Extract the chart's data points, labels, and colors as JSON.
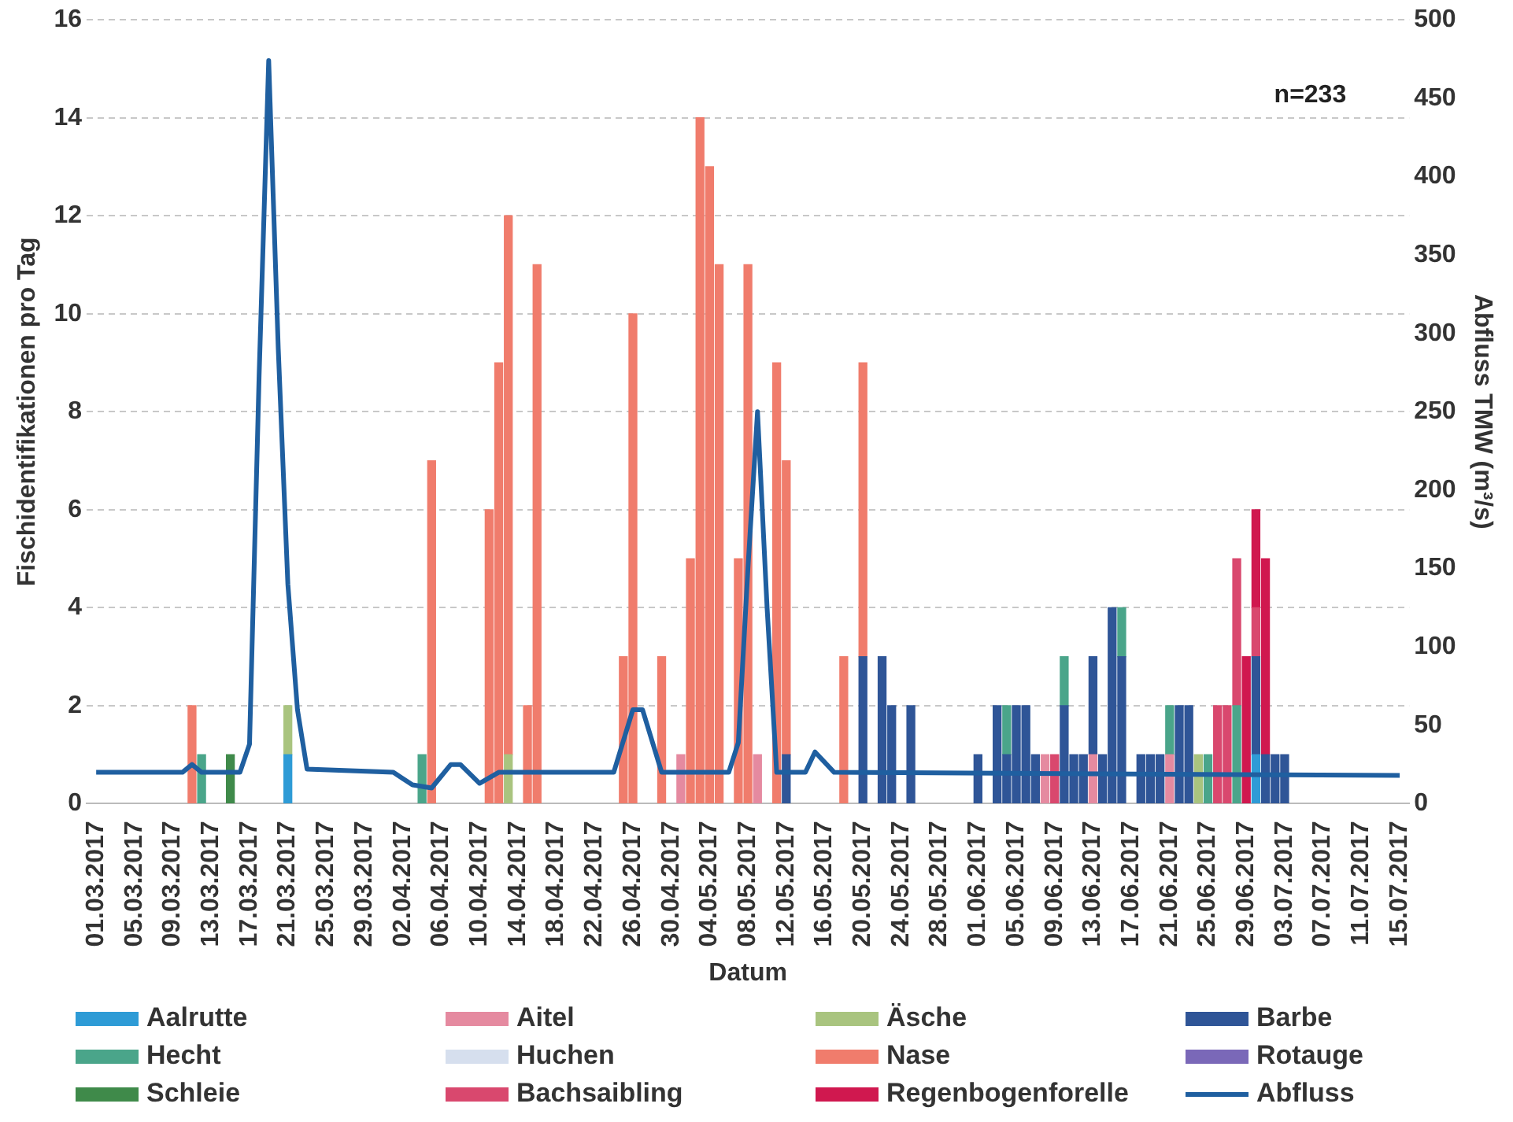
{
  "chart_data": {
    "type": "bar",
    "stacked": true,
    "xlabel": "Datum",
    "ylabel": "Fischidentifikationen pro Tag",
    "y2label": "Abfluss TMW (m³/s)",
    "annotations": [
      "n=233"
    ],
    "legend": "bottom",
    "grid": "y",
    "xlim": [
      "2017-02-28",
      "2017-07-16"
    ],
    "xticks": [
      {
        "value": "2017-03-01",
        "label": "01.03.2017"
      },
      {
        "value": "2017-03-05",
        "label": "05.03.2017"
      },
      {
        "value": "2017-03-09",
        "label": "09.03.2017"
      },
      {
        "value": "2017-03-13",
        "label": "13.03.2017"
      },
      {
        "value": "2017-03-17",
        "label": "17.03.2017"
      },
      {
        "value": "2017-03-21",
        "label": "21.03.2017"
      },
      {
        "value": "2017-03-25",
        "label": "25.03.2017"
      },
      {
        "value": "2017-03-29",
        "label": "29.03.2017"
      },
      {
        "value": "2017-04-02",
        "label": "02.04.2017"
      },
      {
        "value": "2017-04-06",
        "label": "06.04.2017"
      },
      {
        "value": "2017-04-10",
        "label": "10.04.2017"
      },
      {
        "value": "2017-04-14",
        "label": "14.04.2017"
      },
      {
        "value": "2017-04-18",
        "label": "18.04.2017"
      },
      {
        "value": "2017-04-22",
        "label": "22.04.2017"
      },
      {
        "value": "2017-04-26",
        "label": "26.04.2017"
      },
      {
        "value": "2017-04-30",
        "label": "30.04.2017"
      },
      {
        "value": "2017-05-04",
        "label": "04.05.2017"
      },
      {
        "value": "2017-05-08",
        "label": "08.05.2017"
      },
      {
        "value": "2017-05-12",
        "label": "12.05.2017"
      },
      {
        "value": "2017-05-16",
        "label": "16.05.2017"
      },
      {
        "value": "2017-05-20",
        "label": "20.05.2017"
      },
      {
        "value": "2017-05-24",
        "label": "24.05.2017"
      },
      {
        "value": "2017-05-28",
        "label": "28.05.2017"
      },
      {
        "value": "2017-06-01",
        "label": "01.06.2017"
      },
      {
        "value": "2017-06-05",
        "label": "05.06.2017"
      },
      {
        "value": "2017-06-09",
        "label": "09.06.2017"
      },
      {
        "value": "2017-06-13",
        "label": "13.06.2017"
      },
      {
        "value": "2017-06-17",
        "label": "17.06.2017"
      },
      {
        "value": "2017-06-21",
        "label": "21.06.2017"
      },
      {
        "value": "2017-06-25",
        "label": "25.06.2017"
      },
      {
        "value": "2017-06-29",
        "label": "29.06.2017"
      },
      {
        "value": "2017-07-03",
        "label": "03.07.2017"
      },
      {
        "value": "2017-07-07",
        "label": "07.07.2017"
      },
      {
        "value": "2017-07-11",
        "label": "11.07.2017"
      },
      {
        "value": "2017-07-15",
        "label": "15.07.2017"
      }
    ],
    "ylim": [
      0,
      16
    ],
    "yticks": [
      0,
      2,
      4,
      6,
      8,
      10,
      12,
      14,
      16
    ],
    "y2lim": [
      0,
      500
    ],
    "y2ticks": [
      0,
      50,
      100,
      150,
      200,
      250,
      300,
      350,
      400,
      450,
      500
    ],
    "x": [
      "2017-03-11",
      "2017-03-12",
      "2017-03-15",
      "2017-03-21",
      "2017-04-04",
      "2017-04-05",
      "2017-04-11",
      "2017-04-12",
      "2017-04-13",
      "2017-04-15",
      "2017-04-16",
      "2017-04-25",
      "2017-04-26",
      "2017-04-29",
      "2017-05-01",
      "2017-05-02",
      "2017-05-03",
      "2017-05-04",
      "2017-05-05",
      "2017-05-07",
      "2017-05-08",
      "2017-05-09",
      "2017-05-11",
      "2017-05-12",
      "2017-05-18",
      "2017-05-20",
      "2017-05-22",
      "2017-05-23",
      "2017-05-25",
      "2017-06-01",
      "2017-06-03",
      "2017-06-04",
      "2017-06-05",
      "2017-06-06",
      "2017-06-07",
      "2017-06-08",
      "2017-06-09",
      "2017-06-10",
      "2017-06-11",
      "2017-06-12",
      "2017-06-13",
      "2017-06-14",
      "2017-06-15",
      "2017-06-16",
      "2017-06-18",
      "2017-06-19",
      "2017-06-20",
      "2017-06-21",
      "2017-06-22",
      "2017-06-23",
      "2017-06-24",
      "2017-06-25",
      "2017-06-26",
      "2017-06-27",
      "2017-06-28",
      "2017-06-29",
      "2017-06-30",
      "2017-07-01",
      "2017-07-02",
      "2017-07-03"
    ],
    "series": [
      {
        "name": "Aalrutte",
        "color": "#2e9bd6",
        "values": [
          null,
          null,
          null,
          1,
          null,
          null,
          null,
          null,
          null,
          null,
          null,
          null,
          null,
          null,
          null,
          null,
          null,
          null,
          null,
          null,
          null,
          null,
          null,
          null,
          null,
          null,
          null,
          null,
          null,
          null,
          null,
          null,
          null,
          null,
          null,
          null,
          null,
          null,
          null,
          null,
          null,
          null,
          null,
          null,
          null,
          null,
          null,
          null,
          null,
          null,
          null,
          null,
          null,
          null,
          null,
          null,
          1,
          null,
          null,
          null
        ]
      },
      {
        "name": "Aitel",
        "color": "#e58aa0",
        "values": [
          null,
          null,
          null,
          null,
          null,
          null,
          null,
          null,
          null,
          null,
          null,
          null,
          null,
          null,
          1,
          null,
          null,
          null,
          null,
          null,
          null,
          1,
          null,
          null,
          null,
          null,
          null,
          null,
          null,
          null,
          null,
          null,
          null,
          null,
          null,
          1,
          null,
          null,
          null,
          null,
          1,
          null,
          null,
          null,
          null,
          null,
          null,
          1,
          null,
          null,
          null,
          null,
          null,
          null,
          null,
          null,
          null,
          null,
          null,
          null
        ]
      },
      {
        "name": "Äsche",
        "color": "#a9c47f",
        "values": [
          null,
          null,
          null,
          1,
          null,
          null,
          null,
          null,
          1,
          null,
          null,
          null,
          null,
          null,
          null,
          null,
          null,
          null,
          null,
          null,
          null,
          null,
          null,
          null,
          null,
          null,
          null,
          null,
          null,
          null,
          null,
          null,
          null,
          null,
          null,
          null,
          null,
          null,
          null,
          null,
          null,
          null,
          null,
          null,
          null,
          null,
          null,
          null,
          null,
          null,
          1,
          null,
          null,
          null,
          null,
          null,
          null,
          null,
          null,
          null
        ]
      },
      {
        "name": "Barbe",
        "color": "#2f5597",
        "values": [
          null,
          null,
          null,
          null,
          null,
          null,
          null,
          null,
          null,
          null,
          null,
          null,
          null,
          null,
          null,
          null,
          null,
          null,
          null,
          null,
          null,
          null,
          null,
          1,
          null,
          3,
          3,
          2,
          2,
          1,
          2,
          1,
          2,
          2,
          1,
          null,
          null,
          2,
          1,
          1,
          2,
          1,
          4,
          3,
          1,
          1,
          1,
          null,
          2,
          2,
          null,
          null,
          null,
          null,
          null,
          null,
          2,
          1,
          1,
          1
        ]
      },
      {
        "name": "Hecht",
        "color": "#4aa58a",
        "values": [
          null,
          1,
          null,
          null,
          1,
          null,
          null,
          null,
          null,
          null,
          null,
          null,
          null,
          null,
          null,
          null,
          null,
          null,
          null,
          null,
          null,
          null,
          null,
          null,
          null,
          null,
          null,
          null,
          null,
          null,
          null,
          1,
          null,
          null,
          null,
          null,
          null,
          1,
          null,
          null,
          null,
          null,
          null,
          1,
          null,
          null,
          null,
          1,
          null,
          null,
          null,
          1,
          null,
          null,
          2,
          null,
          null,
          null,
          null,
          null
        ]
      },
      {
        "name": "Huchen",
        "color": "#d6dfee",
        "values": [
          null,
          null,
          null,
          null,
          null,
          null,
          null,
          null,
          null,
          null,
          null,
          null,
          null,
          null,
          null,
          null,
          null,
          null,
          null,
          null,
          null,
          null,
          null,
          null,
          null,
          null,
          null,
          null,
          null,
          null,
          null,
          null,
          null,
          null,
          null,
          null,
          null,
          null,
          null,
          null,
          null,
          null,
          null,
          null,
          null,
          null,
          null,
          null,
          null,
          null,
          null,
          null,
          null,
          null,
          null,
          null,
          null,
          null,
          null,
          null
        ]
      },
      {
        "name": "Nase",
        "color": "#f07c6c",
        "values": [
          2,
          null,
          null,
          null,
          null,
          7,
          6,
          9,
          11,
          2,
          11,
          3,
          10,
          3,
          null,
          5,
          14,
          13,
          11,
          5,
          11,
          null,
          9,
          6,
          3,
          6,
          null,
          null,
          null,
          null,
          null,
          null,
          null,
          null,
          null,
          null,
          null,
          null,
          null,
          null,
          null,
          null,
          null,
          null,
          null,
          null,
          null,
          null,
          null,
          null,
          null,
          null,
          null,
          null,
          null,
          null,
          null,
          null,
          null,
          null
        ]
      },
      {
        "name": "Rotauge",
        "color": "#7a68b8",
        "values": [
          null,
          null,
          null,
          null,
          null,
          null,
          null,
          null,
          null,
          null,
          null,
          null,
          null,
          null,
          null,
          null,
          null,
          null,
          null,
          null,
          null,
          null,
          null,
          null,
          null,
          null,
          null,
          null,
          null,
          null,
          null,
          null,
          null,
          null,
          null,
          null,
          null,
          null,
          null,
          null,
          null,
          null,
          null,
          null,
          null,
          null,
          null,
          null,
          null,
          null,
          null,
          null,
          null,
          null,
          null,
          null,
          null,
          null,
          null,
          null
        ]
      },
      {
        "name": "Schleie",
        "color": "#3f8a4a",
        "values": [
          null,
          null,
          1,
          null,
          null,
          null,
          null,
          null,
          null,
          null,
          null,
          null,
          null,
          null,
          null,
          null,
          null,
          null,
          null,
          null,
          null,
          null,
          null,
          null,
          null,
          null,
          null,
          null,
          null,
          null,
          null,
          null,
          null,
          null,
          null,
          null,
          null,
          null,
          null,
          null,
          null,
          null,
          null,
          null,
          null,
          null,
          null,
          null,
          null,
          null,
          null,
          null,
          null,
          null,
          null,
          null,
          null,
          null,
          null,
          null
        ]
      },
      {
        "name": "Bachsaibling",
        "color": "#d9486e",
        "values": [
          null,
          null,
          null,
          null,
          null,
          null,
          null,
          null,
          null,
          null,
          null,
          null,
          null,
          null,
          null,
          null,
          null,
          null,
          null,
          null,
          null,
          null,
          null,
          null,
          null,
          null,
          null,
          null,
          null,
          null,
          null,
          null,
          null,
          null,
          null,
          null,
          1,
          null,
          null,
          null,
          null,
          null,
          null,
          null,
          null,
          null,
          null,
          null,
          null,
          null,
          null,
          null,
          2,
          2,
          3,
          null,
          1,
          null,
          null,
          null
        ]
      },
      {
        "name": "Regenbogenforelle",
        "color": "#d0184f",
        "values": [
          null,
          null,
          null,
          null,
          null,
          null,
          null,
          null,
          null,
          null,
          null,
          null,
          null,
          null,
          null,
          null,
          null,
          null,
          null,
          null,
          null,
          null,
          null,
          null,
          null,
          null,
          null,
          null,
          null,
          null,
          null,
          null,
          null,
          null,
          null,
          null,
          null,
          null,
          null,
          null,
          null,
          null,
          null,
          null,
          null,
          null,
          null,
          null,
          null,
          null,
          null,
          null,
          null,
          null,
          null,
          3,
          2,
          4,
          null,
          null
        ]
      },
      {
        "name": "Abfluss",
        "type": "line",
        "axis": "y2",
        "color": "#1f5fa0",
        "x": [
          "2017-03-01",
          "2017-03-10",
          "2017-03-11",
          "2017-03-12",
          "2017-03-16",
          "2017-03-17",
          "2017-03-18",
          "2017-03-19",
          "2017-03-20",
          "2017-03-21",
          "2017-03-22",
          "2017-03-23",
          "2017-04-01",
          "2017-04-03",
          "2017-04-05",
          "2017-04-07",
          "2017-04-08",
          "2017-04-10",
          "2017-04-12",
          "2017-04-24",
          "2017-04-26",
          "2017-04-27",
          "2017-04-29",
          "2017-05-06",
          "2017-05-07",
          "2017-05-08",
          "2017-05-09",
          "2017-05-10",
          "2017-05-11",
          "2017-05-14",
          "2017-05-15",
          "2017-05-17",
          "2017-07-15"
        ],
        "values": [
          20,
          20,
          25,
          20,
          20,
          38,
          273,
          474,
          290,
          140,
          60,
          22,
          20,
          12,
          10,
          25,
          25,
          13,
          20,
          20,
          60,
          60,
          20,
          20,
          39,
          150,
          250,
          125,
          20,
          20,
          33,
          20,
          18
        ]
      }
    ]
  }
}
